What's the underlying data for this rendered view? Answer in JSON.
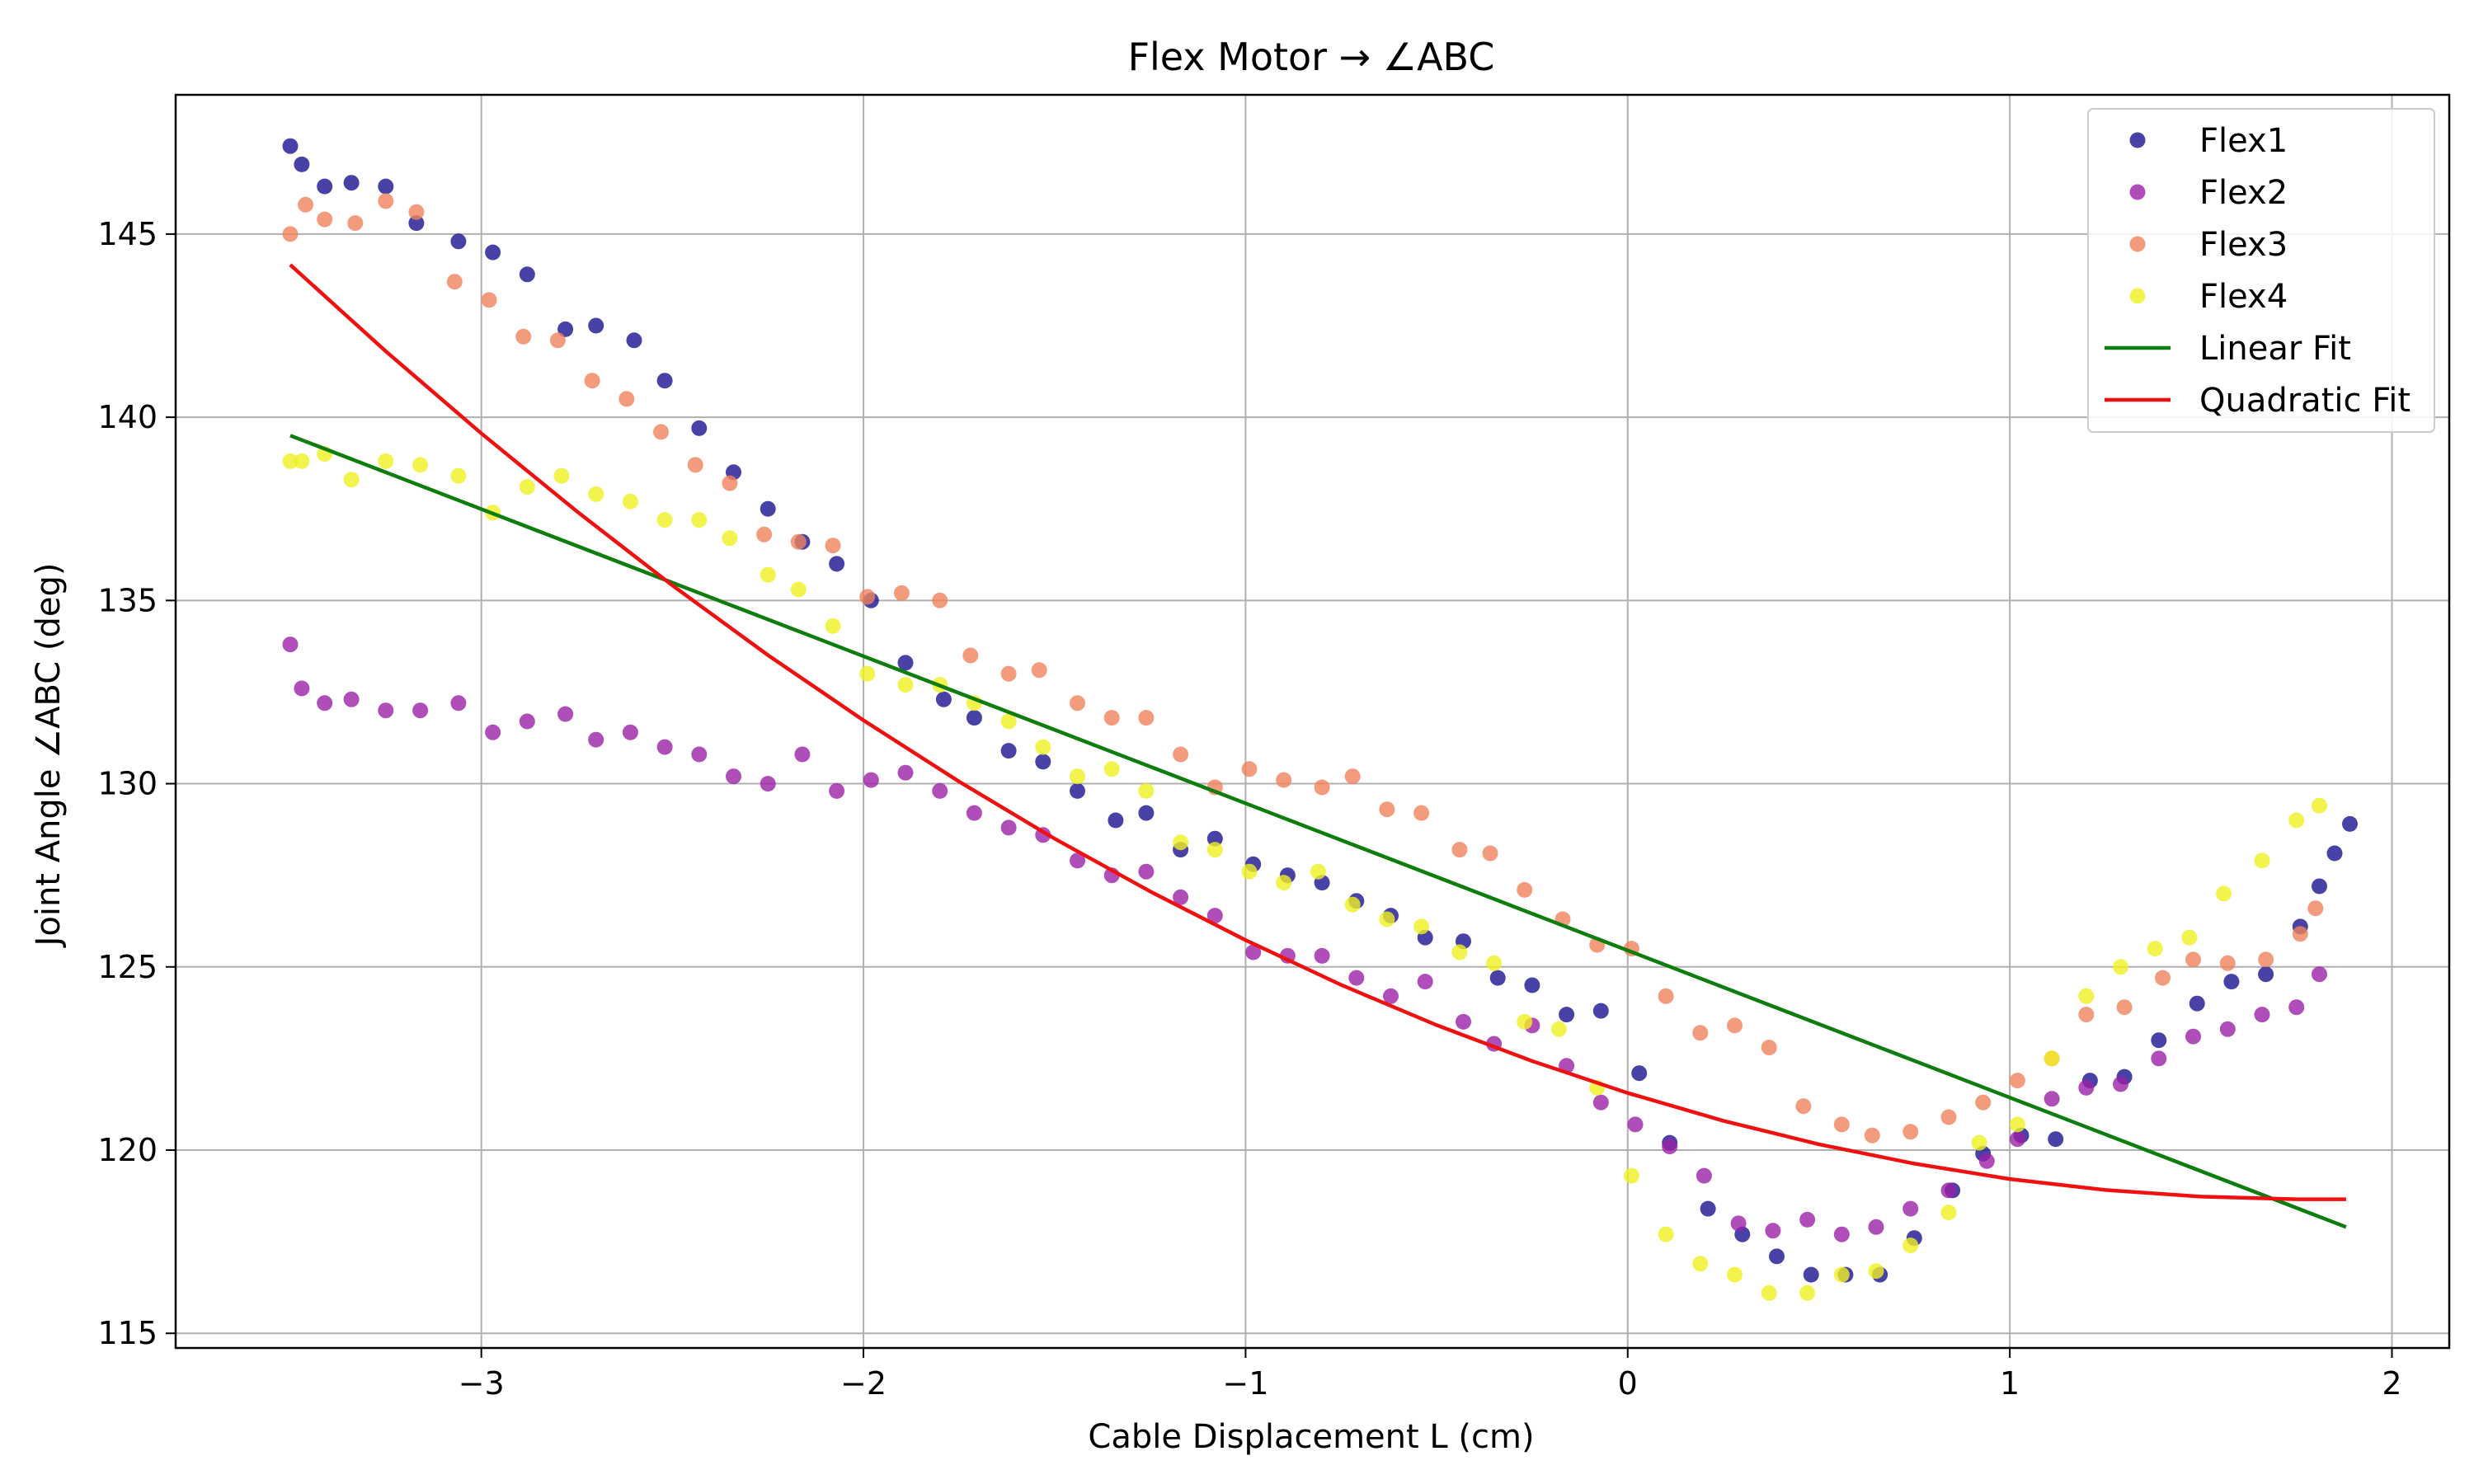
{
  "chart_data": {
    "type": "scatter",
    "title": "Flex Motor → ∠ABC",
    "xlabel": "Cable Displacement L (cm)",
    "ylabel": "Joint Angle ∠ABC (deg)",
    "xlim": [
      -3.8,
      2.15
    ],
    "ylim": [
      114.6,
      148.8
    ],
    "xticks": [
      -3,
      -2,
      -1,
      0,
      1,
      2
    ],
    "xtick_labels": [
      "−3",
      "−2",
      "−1",
      "0",
      "1",
      "2"
    ],
    "yticks": [
      115,
      120,
      125,
      130,
      135,
      140,
      145
    ],
    "ytick_labels": [
      "115",
      "120",
      "125",
      "130",
      "135",
      "140",
      "145"
    ],
    "grid": true,
    "legend_position": "top-right",
    "series": [
      {
        "name": "Flex1",
        "kind": "scatter",
        "color": "#1a1390",
        "x": [
          -3.5,
          -3.47,
          -3.41,
          -3.34,
          -3.25,
          -3.17,
          -3.06,
          -2.97,
          -2.88,
          -2.78,
          -2.7,
          -2.6,
          -2.52,
          -2.43,
          -2.34,
          -2.25,
          -2.16,
          -2.07,
          -1.98,
          -1.89,
          -1.79,
          -1.71,
          -1.62,
          -1.53,
          -1.44,
          -1.34,
          -1.26,
          -1.17,
          -1.08,
          -0.98,
          -0.89,
          -0.8,
          -0.71,
          -0.62,
          -0.53,
          -0.43,
          -0.34,
          -0.25,
          -0.16,
          -0.07,
          0.03,
          0.11,
          0.21,
          0.3,
          0.39,
          0.48,
          0.57,
          0.66,
          0.75,
          0.85,
          0.93,
          1.03,
          1.12,
          1.21,
          1.3,
          1.39,
          1.49,
          1.58,
          1.67,
          1.76,
          1.81,
          1.85,
          1.89
        ],
        "y": [
          147.4,
          146.9,
          146.3,
          146.4,
          146.3,
          145.3,
          144.8,
          144.5,
          143.9,
          142.4,
          142.5,
          142.1,
          141.0,
          139.7,
          138.5,
          137.5,
          136.6,
          136.0,
          135.0,
          133.3,
          132.3,
          131.8,
          130.9,
          130.6,
          129.8,
          129.0,
          129.2,
          128.2,
          128.5,
          127.8,
          127.5,
          127.3,
          126.8,
          126.4,
          125.8,
          125.7,
          124.7,
          124.5,
          123.7,
          123.8,
          122.1,
          120.2,
          118.4,
          117.7,
          117.1,
          116.6,
          116.6,
          116.6,
          117.6,
          118.9,
          119.9,
          120.4,
          120.3,
          121.9,
          122.0,
          123.0,
          124.0,
          124.6,
          124.8,
          126.1,
          127.2,
          128.1,
          128.9
        ]
      },
      {
        "name": "Flex2",
        "kind": "scatter",
        "color": "#9b20a8",
        "x": [
          -3.5,
          -3.47,
          -3.41,
          -3.34,
          -3.25,
          -3.16,
          -3.06,
          -2.97,
          -2.88,
          -2.78,
          -2.7,
          -2.61,
          -2.52,
          -2.43,
          -2.34,
          -2.25,
          -2.16,
          -2.07,
          -1.98,
          -1.89,
          -1.8,
          -1.71,
          -1.62,
          -1.53,
          -1.44,
          -1.35,
          -1.26,
          -1.17,
          -1.08,
          -0.98,
          -0.89,
          -0.8,
          -0.71,
          -0.62,
          -0.53,
          -0.43,
          -0.35,
          -0.25,
          -0.16,
          -0.07,
          0.02,
          0.11,
          0.2,
          0.29,
          0.38,
          0.47,
          0.56,
          0.65,
          0.74,
          0.84,
          0.94,
          1.02,
          1.11,
          1.2,
          1.29,
          1.39,
          1.48,
          1.57,
          1.66,
          1.75,
          1.81
        ],
        "y": [
          133.8,
          132.6,
          132.2,
          132.3,
          132.0,
          132.0,
          132.2,
          131.4,
          131.7,
          131.9,
          131.2,
          131.4,
          131.0,
          130.8,
          130.2,
          130.0,
          130.8,
          129.8,
          130.1,
          130.3,
          129.8,
          129.2,
          128.8,
          128.6,
          127.9,
          127.5,
          127.6,
          126.9,
          126.4,
          125.4,
          125.3,
          125.3,
          124.7,
          124.2,
          124.6,
          123.5,
          122.9,
          123.4,
          122.3,
          121.3,
          120.7,
          120.1,
          119.3,
          118.0,
          117.8,
          118.1,
          117.7,
          117.9,
          118.4,
          118.9,
          119.7,
          120.3,
          121.4,
          121.7,
          121.8,
          122.5,
          123.1,
          123.3,
          123.7,
          123.9,
          124.8
        ]
      },
      {
        "name": "Flex3",
        "kind": "scatter",
        "color": "#f0835c",
        "x": [
          -3.5,
          -3.46,
          -3.41,
          -3.33,
          -3.25,
          -3.17,
          -3.07,
          -2.98,
          -2.89,
          -2.8,
          -2.71,
          -2.62,
          -2.53,
          -2.44,
          -2.35,
          -2.26,
          -2.17,
          -2.08,
          -1.99,
          -1.9,
          -1.8,
          -1.72,
          -1.62,
          -1.54,
          -1.44,
          -1.35,
          -1.26,
          -1.17,
          -1.08,
          -0.99,
          -0.9,
          -0.8,
          -0.72,
          -0.63,
          -0.54,
          -0.44,
          -0.36,
          -0.27,
          -0.17,
          -0.08,
          0.01,
          0.1,
          0.19,
          0.28,
          0.37,
          0.46,
          0.56,
          0.64,
          0.74,
          0.84,
          0.93,
          1.02,
          1.11,
          1.2,
          1.3,
          1.4,
          1.48,
          1.57,
          1.67,
          1.76,
          1.8
        ],
        "y": [
          145.0,
          145.8,
          145.4,
          145.3,
          145.9,
          145.6,
          143.7,
          143.2,
          142.2,
          142.1,
          141.0,
          140.5,
          139.6,
          138.7,
          138.2,
          136.8,
          136.6,
          136.5,
          135.1,
          135.2,
          135.0,
          133.5,
          133.0,
          133.1,
          132.2,
          131.8,
          131.8,
          130.8,
          129.9,
          130.4,
          130.1,
          129.9,
          130.2,
          129.3,
          129.2,
          128.2,
          128.1,
          127.1,
          126.3,
          125.6,
          125.5,
          124.2,
          123.2,
          123.4,
          122.8,
          121.2,
          120.7,
          120.4,
          120.5,
          120.9,
          121.3,
          121.9,
          122.5,
          123.7,
          123.9,
          124.7,
          125.2,
          125.1,
          125.2,
          125.9,
          126.6
        ]
      },
      {
        "name": "Flex4",
        "kind": "scatter",
        "color": "#f0f020",
        "x": [
          -3.5,
          -3.47,
          -3.41,
          -3.34,
          -3.25,
          -3.16,
          -3.06,
          -2.97,
          -2.88,
          -2.79,
          -2.7,
          -2.61,
          -2.52,
          -2.43,
          -2.35,
          -2.25,
          -2.17,
          -2.08,
          -1.99,
          -1.89,
          -1.8,
          -1.71,
          -1.62,
          -1.53,
          -1.44,
          -1.35,
          -1.26,
          -1.17,
          -1.08,
          -0.99,
          -0.9,
          -0.81,
          -0.72,
          -0.63,
          -0.54,
          -0.44,
          -0.35,
          -0.27,
          -0.18,
          -0.08,
          0.01,
          0.1,
          0.19,
          0.28,
          0.37,
          0.47,
          0.56,
          0.65,
          0.74,
          0.84,
          0.92,
          1.02,
          1.11,
          1.2,
          1.29,
          1.38,
          1.47,
          1.56,
          1.66,
          1.75,
          1.81
        ],
        "y": [
          138.8,
          138.8,
          139.0,
          138.3,
          138.8,
          138.7,
          138.4,
          137.4,
          138.1,
          138.4,
          137.9,
          137.7,
          137.2,
          137.2,
          136.7,
          135.7,
          135.3,
          134.3,
          133.0,
          132.7,
          132.7,
          132.2,
          131.7,
          131.0,
          130.2,
          130.4,
          129.8,
          128.4,
          128.2,
          127.6,
          127.3,
          127.6,
          126.7,
          126.3,
          126.1,
          125.4,
          125.1,
          123.5,
          123.3,
          121.7,
          119.3,
          117.7,
          116.9,
          116.6,
          116.1,
          116.1,
          116.6,
          116.7,
          117.4,
          118.3,
          120.2,
          120.7,
          122.5,
          124.2,
          125.0,
          125.5,
          125.8,
          127.0,
          127.9,
          129.0,
          129.4
        ]
      },
      {
        "name": "Linear Fit",
        "kind": "line",
        "color": "#0d7d0d",
        "x": [
          -3.5,
          1.88
        ],
        "y": [
          139.5,
          117.9
        ]
      },
      {
        "name": "Quadratic Fit",
        "kind": "line",
        "color": "#f01010",
        "x": [
          -3.5,
          -3.25,
          -3.0,
          -2.75,
          -2.5,
          -2.25,
          -2.0,
          -1.75,
          -1.5,
          -1.25,
          -1.0,
          -0.75,
          -0.5,
          -0.25,
          0.0,
          0.25,
          0.5,
          0.75,
          1.0,
          1.25,
          1.5,
          1.75,
          1.88
        ],
        "y": [
          144.16,
          141.8,
          139.56,
          137.43,
          135.41,
          133.51,
          131.73,
          130.06,
          128.5,
          127.06,
          125.73,
          124.51,
          123.41,
          122.43,
          121.56,
          120.8,
          120.16,
          119.63,
          119.21,
          118.91,
          118.73,
          118.66,
          118.66
        ]
      }
    ]
  }
}
